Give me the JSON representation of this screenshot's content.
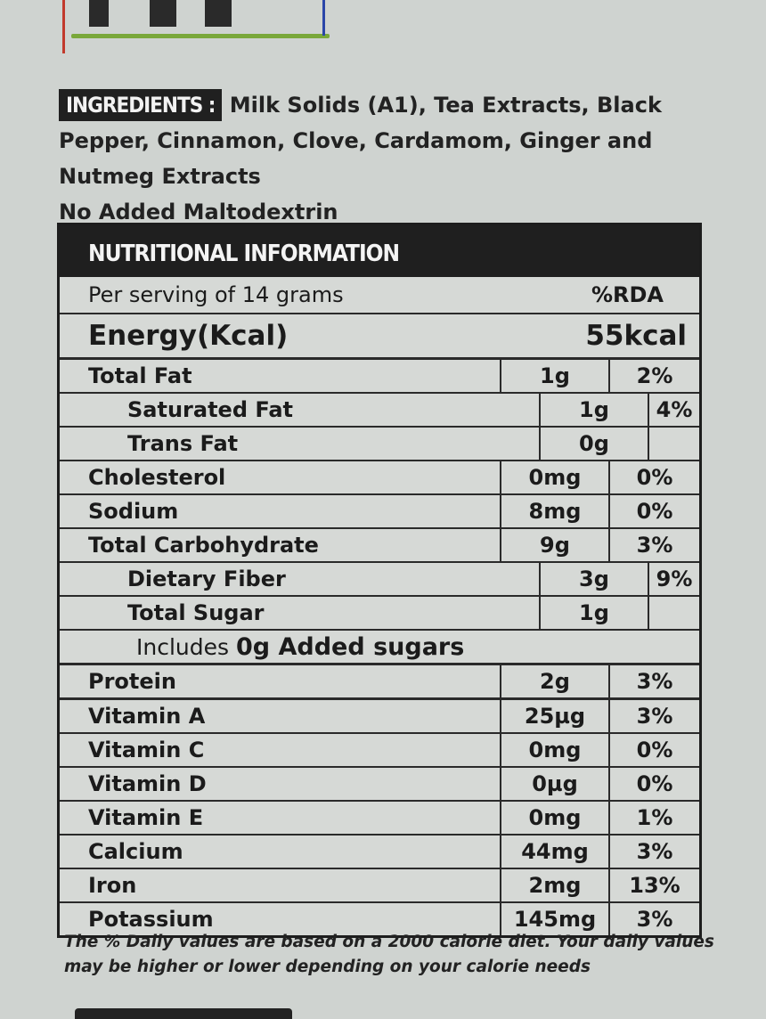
{
  "ingredients": {
    "label": "INGREDIENTS :",
    "text": "Milk Solids (A1), Tea Extracts, Black Pepper, Cinnamon, Clove, Cardamom, Ginger and Nutmeg Extracts",
    "note": "No Added Maltodextrin"
  },
  "nutrition": {
    "title": "NUTRITIONAL INFORMATION",
    "serving": "Per serving of 14 grams",
    "rda_header": "%RDA",
    "energy_label": "Energy(Kcal)",
    "energy_value": "55kcal",
    "rows": [
      {
        "name": "Total Fat",
        "amount": "1g",
        "pct": "2%"
      },
      {
        "name": "Saturated Fat",
        "amount": "1g",
        "pct": "4%"
      },
      {
        "name": "Trans Fat",
        "amount": "0g",
        "pct": ""
      },
      {
        "name": "Cholesterol",
        "amount": "0mg",
        "pct": "0%"
      },
      {
        "name": "Sodium",
        "amount": "8mg",
        "pct": "0%"
      },
      {
        "name": "Total Carbohydrate",
        "amount": "9g",
        "pct": "3%"
      },
      {
        "name": "Dietary Fiber",
        "amount": "3g",
        "pct": "9%"
      },
      {
        "name": "Total Sugar",
        "amount": "1g",
        "pct": ""
      }
    ],
    "added_sugars": {
      "prefix": "Includes",
      "value": "0g Added sugars"
    },
    "rows2": [
      {
        "name": "Protein",
        "amount": "2g",
        "pct": "3%"
      },
      {
        "name": "Vitamin A",
        "amount": "25µg",
        "pct": "3%"
      },
      {
        "name": "Vitamin C",
        "amount": "0mg",
        "pct": "0%"
      },
      {
        "name": "Vitamin D",
        "amount": "0µg",
        "pct": "0%"
      },
      {
        "name": "Vitamin E",
        "amount": "0mg",
        "pct": "1%"
      },
      {
        "name": "Calcium",
        "amount": "44mg",
        "pct": "3%"
      },
      {
        "name": "Iron",
        "amount": "2mg",
        "pct": "13%"
      },
      {
        "name": "Potassium",
        "amount": "145mg",
        "pct": "3%"
      }
    ]
  },
  "footnote": "The % Daily values are based on a 2000 calorie diet. Your daily values may be higher or lower depending on your calorie needs"
}
